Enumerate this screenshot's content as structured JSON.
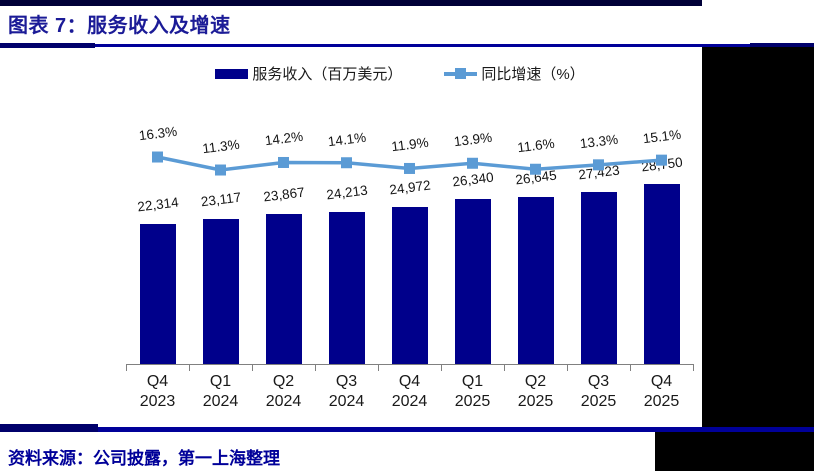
{
  "header": {
    "title": "图表 7：服务收入及增速"
  },
  "chart_data": {
    "type": "bar+line",
    "title": "服务收入及增速",
    "categories": [
      "Q4 2023",
      "Q1 2024",
      "Q2 2024",
      "Q3 2024",
      "Q4 2024",
      "Q1 2025",
      "Q2 2025",
      "Q3 2025",
      "Q4 2025"
    ],
    "series": [
      {
        "name": "服务收入（百万美元）",
        "type": "bar",
        "color": "#00008B",
        "values": [
          22314,
          23117,
          23867,
          24213,
          24972,
          26340,
          26645,
          27423,
          28750
        ],
        "labels": [
          "22,314",
          "23,117",
          "23,867",
          "24,213",
          "24,972",
          "26,340",
          "26,645",
          "27,423",
          "28,750"
        ]
      },
      {
        "name": "同比增速（%）",
        "type": "line",
        "color": "#5B9BD5",
        "values": [
          16.3,
          11.3,
          14.2,
          14.1,
          11.9,
          13.9,
          11.6,
          13.3,
          15.1
        ],
        "labels": [
          "16.3%",
          "11.3%",
          "14.2%",
          "14.1%",
          "11.9%",
          "13.9%",
          "11.6%",
          "13.3%",
          "15.1%"
        ]
      }
    ],
    "legend_position": "top",
    "grid": false,
    "value_labels": true,
    "bar_axis_min": 0
  },
  "footer": {
    "source": "资料来源：公司披露，第一上海整理"
  },
  "colors": {
    "bar": "#00008B",
    "line": "#5B9BD5",
    "rule": "#000099",
    "title_text": "#1b1b97",
    "source_text": "#000099"
  }
}
